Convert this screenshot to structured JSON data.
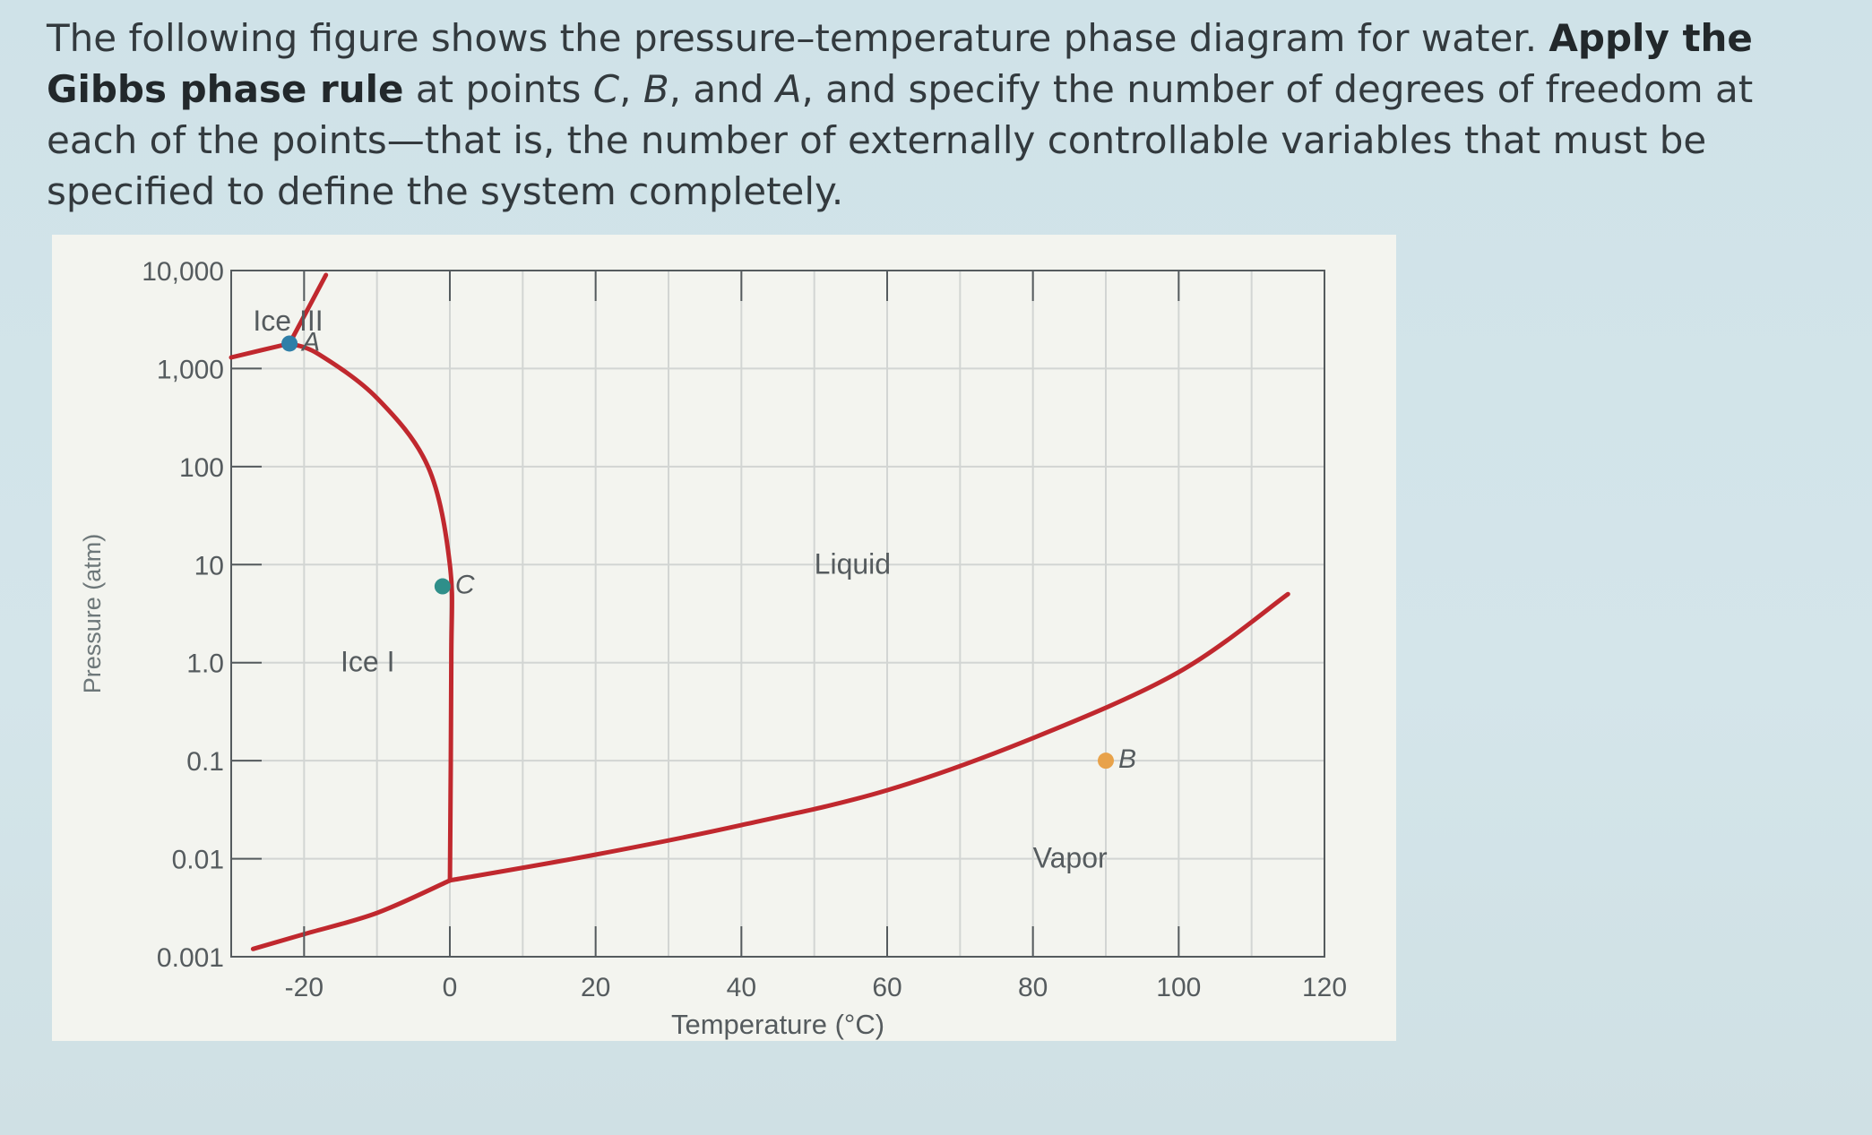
{
  "question": {
    "part1": "The following figure shows the pressure–temperature phase diagram for water. ",
    "bold1": "Apply the Gibbs phase rule",
    "part2": " at points ",
    "c": "C",
    "sep1": ", ",
    "b": "B",
    "sep2": ", and ",
    "a": "A",
    "part3": ", and specify the number of degrees of freedom at each of the points—that is, the number of externally controllable variables that must be specified to define the system completely."
  },
  "chart_data": {
    "type": "line",
    "xlabel": "Temperature (°C)",
    "ylabel": "Pressure (atm)",
    "xlim": [
      -30,
      120
    ],
    "ylim_log10": [
      -3,
      4
    ],
    "y_scale": "log",
    "x_ticks": [
      -20,
      0,
      20,
      40,
      60,
      80,
      100,
      120
    ],
    "y_ticks": [
      {
        "value": 10000,
        "label": "10,000"
      },
      {
        "value": 1000,
        "label": "1,000"
      },
      {
        "value": 100,
        "label": "100"
      },
      {
        "value": 10,
        "label": "10"
      },
      {
        "value": 1,
        "label": "1.0"
      },
      {
        "value": 0.1,
        "label": "0.1"
      },
      {
        "value": 0.01,
        "label": "0.01"
      },
      {
        "value": 0.001,
        "label": "0.001"
      }
    ],
    "grid": true,
    "curves": [
      {
        "id": "sublimation",
        "x": [
          -27,
          -20,
          -10,
          0.01
        ],
        "y": [
          0.0012,
          0.0017,
          0.0028,
          0.006
        ]
      },
      {
        "id": "vaporization",
        "x": [
          0.01,
          20,
          40,
          60,
          80,
          100,
          115
        ],
        "y": [
          0.006,
          0.011,
          0.022,
          0.05,
          0.17,
          0.8,
          5
        ]
      },
      {
        "id": "melting",
        "x": [
          0.01,
          0.2,
          0.0,
          -3,
          -10,
          -18,
          -22
        ],
        "y": [
          0.006,
          1,
          10,
          100,
          500,
          1400,
          1800
        ]
      },
      {
        "id": "ice-iii-boundary",
        "x": [
          -30,
          -22
        ],
        "y": [
          1300,
          1800
        ]
      },
      {
        "id": "ice-iii-upper",
        "x": [
          -22,
          -17
        ],
        "y": [
          1800,
          9000
        ]
      }
    ],
    "points": [
      {
        "label": "A",
        "x": -22,
        "y": 1800,
        "color": "#2f7fa8"
      },
      {
        "label": "C",
        "x": -1,
        "y": 6,
        "color": "#2f8f8a"
      },
      {
        "label": "B",
        "x": 90,
        "y": 0.1,
        "color": "#e8a24a"
      }
    ],
    "regions": [
      {
        "label": "Ice III",
        "x": -27,
        "y": 3000
      },
      {
        "label": "Liquid",
        "x": 50,
        "y": 10
      },
      {
        "label": "Ice I",
        "x": -15,
        "y": 1
      },
      {
        "label": "Vapor",
        "x": 80,
        "y": 0.01
      }
    ],
    "colors": {
      "curve": "#c0282e",
      "grid": "#d2d5d3",
      "text": "#555b5e"
    }
  }
}
